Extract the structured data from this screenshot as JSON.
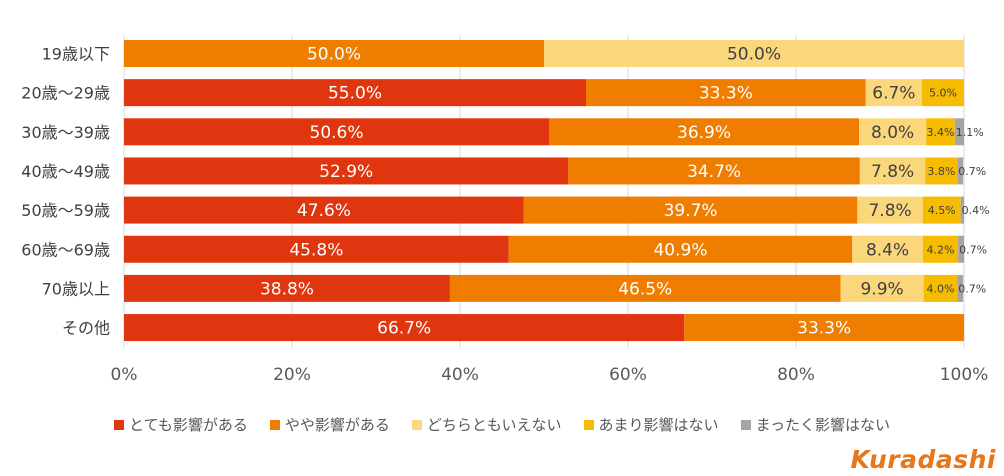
{
  "chart_data": {
    "type": "bar",
    "orientation": "horizontal",
    "stacked": true,
    "categories": [
      "19歳以下",
      "20歳〜29歳",
      "30歳〜39歳",
      "40歳〜49歳",
      "50歳〜59歳",
      "60歳〜69歳",
      "70歳以上",
      "その他"
    ],
    "series": [
      {
        "name": "とても影響がある",
        "color": "#E0360F",
        "values": [
          0,
          55.0,
          50.6,
          52.9,
          47.6,
          45.8,
          38.8,
          66.7
        ],
        "labels": [
          "",
          "55.0%",
          "50.6%",
          "52.9%",
          "47.6%",
          "45.8%",
          "38.8%",
          "66.7%"
        ]
      },
      {
        "name": "やや影響がある",
        "color": "#EE7D00",
        "values": [
          50.0,
          33.3,
          36.9,
          34.7,
          39.7,
          40.9,
          46.5,
          33.3
        ],
        "labels": [
          "50.0%",
          "33.3%",
          "36.9%",
          "34.7%",
          "39.7%",
          "40.9%",
          "46.5%",
          "33.3%"
        ]
      },
      {
        "name": "どちらともいえない",
        "color": "#F9D77A",
        "values": [
          50.0,
          6.7,
          8.0,
          7.8,
          7.8,
          8.4,
          9.9,
          0
        ],
        "labels": [
          "50.0%",
          "6.7%",
          "8.0%",
          "7.8%",
          "7.8%",
          "8.4%",
          "9.9%",
          ""
        ]
      },
      {
        "name": "あまり影響はない",
        "color": "#F5BC00",
        "values": [
          0,
          5.0,
          3.4,
          3.8,
          4.5,
          4.2,
          4.0,
          0
        ],
        "labels": [
          "",
          "5.0%",
          "3.4%",
          "3.8%",
          "4.5%",
          "4.2%",
          "4.0%",
          ""
        ]
      },
      {
        "name": "まったく影響はない",
        "color": "#A5A5A5",
        "values": [
          0,
          0,
          1.1,
          0.7,
          0.4,
          0.7,
          0.7,
          0
        ],
        "labels": [
          "",
          "",
          "1.1%",
          "0.7%",
          "0.4%",
          "0.7%",
          "0.7%",
          ""
        ]
      }
    ],
    "xlim": [
      0,
      100
    ],
    "xticks": [
      "0%",
      "20%",
      "40%",
      "60%",
      "80%",
      "100%"
    ],
    "grid": true,
    "legend_position": "bottom"
  },
  "brand": {
    "text": "Kuradashi",
    "color": "#E8761A"
  }
}
